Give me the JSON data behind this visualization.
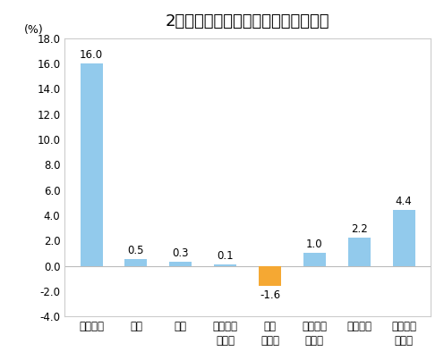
{
  "title": "2月份居民消费价格分类别同比涨跌幅",
  "ylabel": "(%)",
  "categories": [
    "食品烟酒",
    "衣着",
    "居住",
    "生活用品\n及服务",
    "交通\n和通信",
    "教育文化\n和娱乐",
    "医疗保健",
    "其他用品\n和服务"
  ],
  "values": [
    16.0,
    0.5,
    0.3,
    0.1,
    -1.6,
    1.0,
    2.2,
    4.4
  ],
  "bar_colors": [
    "#92CAEC",
    "#92CAEC",
    "#92CAEC",
    "#92CAEC",
    "#F5A833",
    "#92CAEC",
    "#92CAEC",
    "#92CAEC"
  ],
  "ylim": [
    -4.0,
    18.0
  ],
  "yticks": [
    -4.0,
    -2.0,
    0.0,
    2.0,
    4.0,
    6.0,
    8.0,
    10.0,
    12.0,
    14.0,
    16.0,
    18.0
  ],
  "background_color": "#FFFFFF",
  "plot_bg_color": "#FFFFFF",
  "title_fontsize": 13,
  "tick_fontsize": 8.5,
  "label_fontsize": 8.5,
  "ylabel_fontsize": 9,
  "bar_width": 0.5
}
